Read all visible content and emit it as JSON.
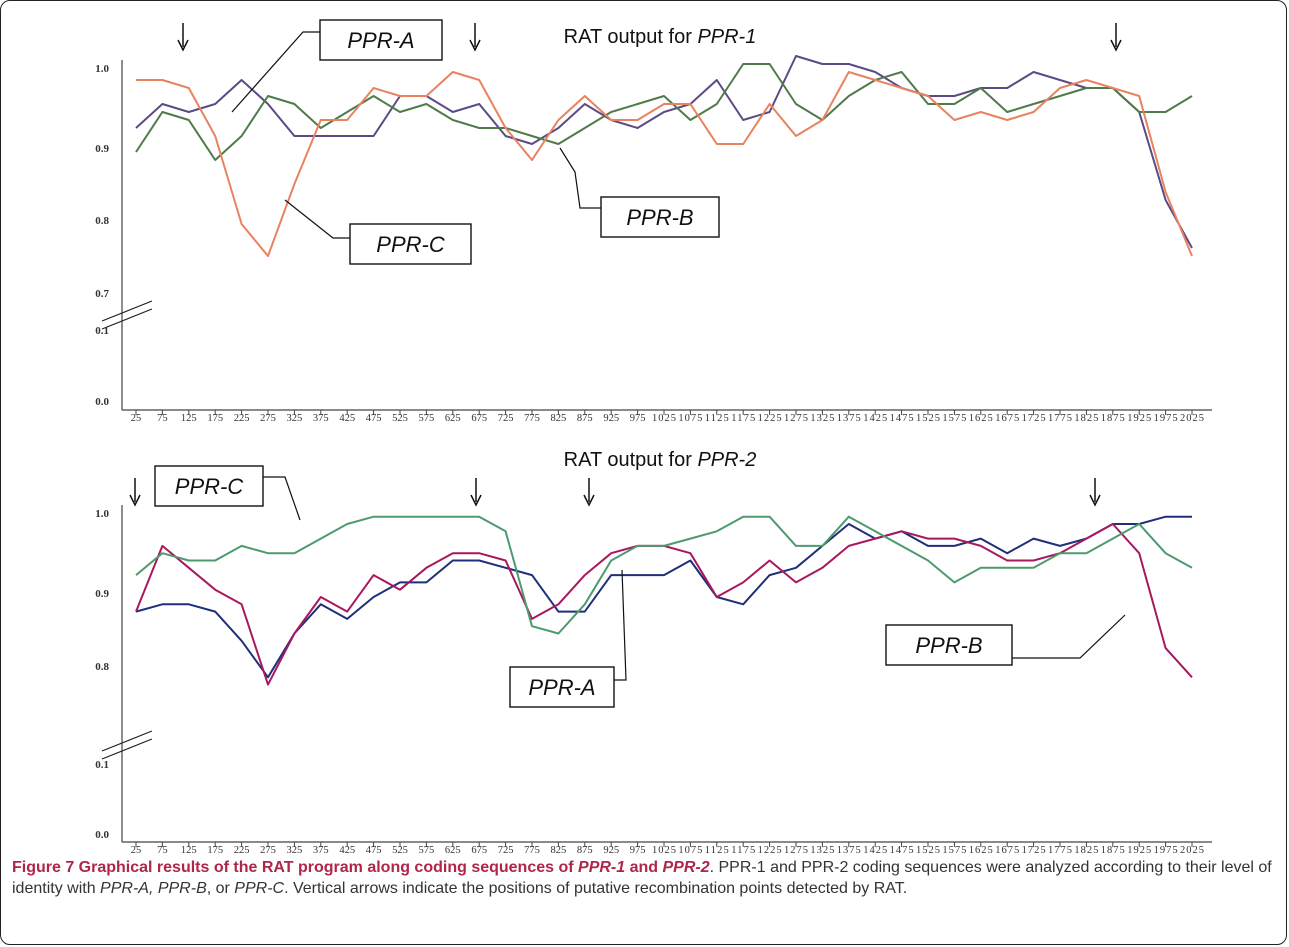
{
  "chart_data": [
    {
      "type": "line",
      "title": "RAT output for PPR-1",
      "title_parts": {
        "prefix": "RAT output for ",
        "name": "PPR-1"
      },
      "x": [
        25,
        75,
        125,
        175,
        225,
        275,
        325,
        375,
        425,
        475,
        525,
        575,
        625,
        675,
        725,
        775,
        825,
        875,
        925,
        975,
        1025,
        1075,
        1125,
        1175,
        1225,
        1275,
        1325,
        1375,
        1425,
        1475,
        1525,
        1575,
        1625,
        1675,
        1725,
        1775,
        1825,
        1875,
        1925,
        1975,
        2025
      ],
      "x_tick_labels": [
        "25",
        "75",
        "125",
        "175",
        "225",
        "275",
        "325",
        "375",
        "425",
        "475",
        "525",
        "575",
        "625",
        "675",
        "725",
        "775",
        "825",
        "875",
        "925",
        "975",
        "1025",
        "1075",
        "1125",
        "1175",
        "1225",
        "1275",
        "1325",
        "1375",
        "1425",
        "1475",
        "1525",
        "1575",
        "1625",
        "1675",
        "1725",
        "1775",
        "1825",
        "1875",
        "1925",
        "1975",
        "2025"
      ],
      "y_tick_labels": [
        "0.0",
        "0.1",
        "0.7",
        "0.8",
        "0.9",
        "1.0"
      ],
      "axis_break": "between 0.1 and 0.7",
      "series": [
        {
          "name": "PPR-A",
          "color": "#5c4a85",
          "values": [
            0.93,
            0.96,
            0.95,
            0.96,
            0.99,
            0.96,
            0.92,
            0.92,
            0.92,
            0.92,
            0.97,
            0.97,
            0.95,
            0.96,
            0.92,
            0.91,
            0.93,
            0.96,
            0.94,
            0.93,
            0.95,
            0.96,
            0.99,
            0.94,
            0.95,
            1.02,
            1.01,
            1.01,
            1.0,
            0.98,
            0.97,
            0.97,
            0.98,
            0.98,
            1.0,
            0.99,
            0.98,
            0.98,
            0.95,
            0.84,
            0.78
          ]
        },
        {
          "name": "PPR-B",
          "color": "#4f7a4a",
          "values": [
            0.9,
            0.95,
            0.94,
            0.89,
            0.92,
            0.97,
            0.96,
            0.93,
            0.95,
            0.97,
            0.95,
            0.96,
            0.94,
            0.93,
            0.93,
            0.92,
            0.91,
            0.93,
            0.95,
            0.96,
            0.97,
            0.94,
            0.96,
            1.01,
            1.01,
            0.96,
            0.94,
            0.97,
            0.99,
            1.0,
            0.96,
            0.96,
            0.98,
            0.95,
            0.96,
            0.97,
            0.98,
            0.98,
            0.95,
            0.95,
            0.97
          ]
        },
        {
          "name": "PPR-C",
          "color": "#e8825f",
          "values": [
            0.99,
            0.99,
            0.98,
            0.92,
            0.81,
            0.77,
            0.86,
            0.94,
            0.94,
            0.98,
            0.97,
            0.97,
            1.0,
            0.99,
            0.93,
            0.89,
            0.94,
            0.97,
            0.94,
            0.94,
            0.96,
            0.96,
            0.91,
            0.91,
            0.96,
            0.92,
            0.94,
            1.0,
            0.99,
            0.98,
            0.97,
            0.94,
            0.95,
            0.94,
            0.95,
            0.98,
            0.99,
            0.98,
            0.97,
            0.85,
            0.77
          ]
        }
      ],
      "arrows_at_x": [
        175,
        725,
        1875
      ]
    },
    {
      "type": "line",
      "title": "RAT output for PPR-2",
      "title_parts": {
        "prefix": "RAT output for ",
        "name": "PPR-2"
      },
      "x": [
        25,
        75,
        125,
        175,
        225,
        275,
        325,
        375,
        425,
        475,
        525,
        575,
        625,
        675,
        725,
        775,
        825,
        875,
        925,
        975,
        1025,
        1075,
        1125,
        1175,
        1225,
        1275,
        1325,
        1375,
        1425,
        1475,
        1525,
        1575,
        1625,
        1675,
        1725,
        1775,
        1825,
        1875,
        1925,
        1975,
        2025
      ],
      "x_tick_labels": [
        "25",
        "75",
        "125",
        "175",
        "225",
        "275",
        "325",
        "375",
        "425",
        "475",
        "525",
        "575",
        "625",
        "675",
        "725",
        "775",
        "825",
        "875",
        "925",
        "975",
        "1025",
        "1075",
        "1125",
        "1175",
        "1225",
        "1275",
        "1325",
        "1375",
        "1425",
        "1475",
        "1525",
        "1575",
        "1625",
        "1675",
        "1725",
        "1775",
        "1825",
        "1875",
        "1925",
        "1975",
        "2025"
      ],
      "y_tick_labels": [
        "0.0",
        "0.1",
        "0.8",
        "0.9",
        "1.0"
      ],
      "axis_break": "between 0.1 and 0.8",
      "series": [
        {
          "name": "PPR-A",
          "color": "#1f2f7a",
          "values": [
            0.88,
            0.89,
            0.89,
            0.88,
            0.84,
            0.79,
            0.85,
            0.89,
            0.87,
            0.9,
            0.92,
            0.92,
            0.95,
            0.95,
            0.94,
            0.93,
            0.88,
            0.88,
            0.93,
            0.93,
            0.93,
            0.95,
            0.9,
            0.89,
            0.93,
            0.94,
            0.97,
            1.0,
            0.98,
            0.99,
            0.97,
            0.97,
            0.98,
            0.96,
            0.98,
            0.97,
            0.98,
            1.0,
            1.0,
            1.01,
            1.01
          ]
        },
        {
          "name": "PPR-B",
          "color": "#a8185e",
          "values": [
            0.88,
            0.97,
            0.94,
            0.91,
            0.89,
            0.78,
            0.85,
            0.9,
            0.88,
            0.93,
            0.91,
            0.94,
            0.96,
            0.96,
            0.95,
            0.87,
            0.89,
            0.93,
            0.96,
            0.97,
            0.97,
            0.96,
            0.9,
            0.92,
            0.95,
            0.92,
            0.94,
            0.97,
            0.98,
            0.99,
            0.98,
            0.98,
            0.97,
            0.95,
            0.95,
            0.96,
            0.98,
            1.0,
            0.96,
            0.83,
            0.79
          ]
        },
        {
          "name": "PPR-C",
          "color": "#4d9a6e",
          "values": [
            0.93,
            0.96,
            0.95,
            0.95,
            0.97,
            0.96,
            0.96,
            0.98,
            1.0,
            1.01,
            1.01,
            1.01,
            1.01,
            1.01,
            0.99,
            0.86,
            0.85,
            0.89,
            0.95,
            0.97,
            0.97,
            0.98,
            0.99,
            1.01,
            1.01,
            0.97,
            0.97,
            1.01,
            0.99,
            0.97,
            0.95,
            0.92,
            0.94,
            0.94,
            0.94,
            0.96,
            0.96,
            0.98,
            1.0,
            0.96,
            0.94
          ]
        }
      ],
      "arrows_at_x": [
        75,
        725,
        925,
        1875
      ]
    }
  ],
  "caption": {
    "figure_label": "Figure 7",
    "title_plain1": " Graphical results of the RAT program along coding sequences of ",
    "title_gene1": "PPR-1",
    "title_and": " and ",
    "title_gene2": "PPR-2",
    "title_period": ".",
    "body1": " PPR-1 and PPR-2 coding sequences were analyzed according to their level of identity with ",
    "body_a": "PPR-A, PPR-B",
    "body_or": ", or ",
    "body_c": "PPR-C",
    "body2": ". Vertical arrows indicate the positions of putative recombination points detected by RAT."
  }
}
